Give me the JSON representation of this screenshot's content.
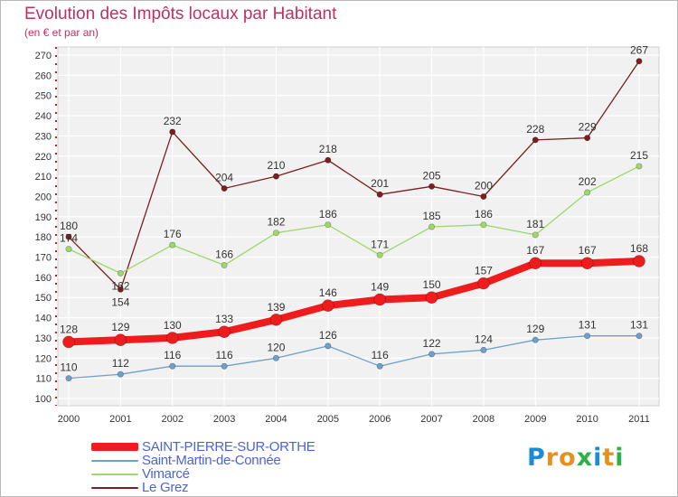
{
  "chart_data": {
    "type": "line",
    "title": "Evolution des Impôts locaux par Habitant",
    "subtitle": "(en € et par an)",
    "xlabel": "",
    "ylabel": "",
    "ylim": [
      100,
      270
    ],
    "ytick_step": 10,
    "grid": true,
    "legend_position": "bottom-left",
    "categories": [
      "2000",
      "2001",
      "2002",
      "2003",
      "2004",
      "2005",
      "2006",
      "2007",
      "2008",
      "2009",
      "2010",
      "2011"
    ],
    "series": [
      {
        "name": "Le Grez",
        "color": "#7a1f22",
        "values": [
          180,
          154,
          232,
          204,
          210,
          218,
          201,
          205,
          200,
          228,
          229,
          267
        ]
      },
      {
        "name": "Vimarcé",
        "color": "#9ed86a",
        "values": [
          174,
          162,
          176,
          166,
          182,
          186,
          171,
          185,
          186,
          181,
          202,
          215
        ]
      },
      {
        "name": "Saint-Martin-de-Connée",
        "color": "#6f9fcc",
        "values": [
          110,
          112,
          116,
          116,
          120,
          126,
          116,
          122,
          124,
          129,
          131,
          131
        ]
      },
      {
        "name": "SAINT-PIERRE-SUR-ORTHE",
        "color": "#ee1c1c",
        "values": [
          128,
          129,
          130,
          133,
          139,
          146,
          149,
          150,
          157,
          167,
          167,
          168
        ]
      }
    ],
    "legend": [
      {
        "name": "SAINT-PIERRE-SUR-ORTHE",
        "color": "#ee1c1c",
        "text_color": "#4d62d6"
      },
      {
        "name": "Saint-Martin-de-Connée",
        "color": "#6f9fcc",
        "text_color": "#4d62d6"
      },
      {
        "name": "Vimarcé",
        "color": "#9ed86a",
        "text_color": "#4d62d6"
      },
      {
        "name": "Le Grez",
        "color": "#7a1f22",
        "text_color": "#4d62d6"
      }
    ]
  },
  "logo": {
    "letters": [
      "P",
      "r",
      "o",
      "x",
      "i",
      "t",
      "i"
    ],
    "colors": [
      "#1c8ad6",
      "#e6911d",
      "#e6911d",
      "#2db04a",
      "#1c8ad6",
      "#e6911d",
      "#2db04a"
    ]
  }
}
